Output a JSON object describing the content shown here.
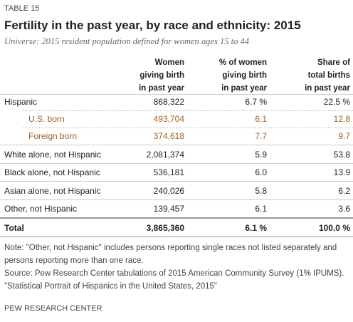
{
  "header": {
    "label": "TABLE 15",
    "title": "Fertility in the past year, by race and ethnicity: 2015",
    "subtitle": "Universe: 2015 resident population defined for women ages 15 to 44"
  },
  "table": {
    "columns": [
      [
        "Women",
        "giving birth",
        "in past year"
      ],
      [
        "% of women",
        "giving birth",
        "in past year"
      ],
      [
        "Share of",
        "total births",
        "in past year"
      ]
    ],
    "rows": [
      [
        "Hispanic",
        "868,322",
        "6.7 %",
        "22.5 %"
      ],
      [
        "U.S. born",
        "493,704",
        "6.1",
        "12.8"
      ],
      [
        "Foreign born",
        "374,618",
        "7.7",
        "9.7"
      ],
      [
        "White alone, not Hispanic",
        "2,081,374",
        "5.9",
        "53.8"
      ],
      [
        "Black alone, not Hispanic",
        "536,181",
        "6.0",
        "13.9"
      ],
      [
        "Asian alone, not Hispanic",
        "240,026",
        "5.8",
        "6.2"
      ],
      [
        "Other, not Hispanic",
        "139,457",
        "6.1",
        "3.6"
      ],
      [
        "Total",
        "3,865,360",
        "6.1 %",
        "100.0 %"
      ]
    ]
  },
  "footer": {
    "note": "Note: \"Other, not Hispanic\" includes persons reporting single races not listed separately and persons reporting more than one race.",
    "source": "Source: Pew Research Center tabulations of 2015 American Community Survey (1% IPUMS).",
    "report": "\"Statistical Portrait of Hispanics in the United States, 2015\"",
    "org": "PEW RESEARCH CENTER"
  }
}
